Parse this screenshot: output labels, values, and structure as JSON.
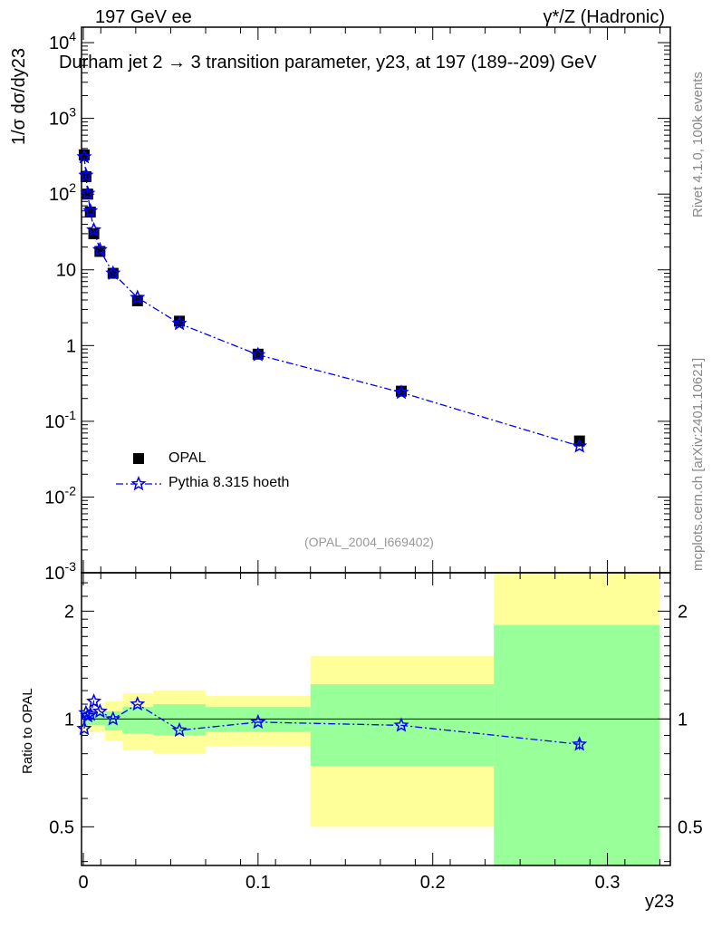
{
  "header": {
    "left": "197 GeV ee",
    "right": "γ*/Z (Hadronic)"
  },
  "side_labels": {
    "rivet": "Rivet 4.1.0,  100k events",
    "mcplots": "mcplots.cern.ch [arXiv:2401.10621]"
  },
  "chart_data": [
    {
      "type": "scatter",
      "title": "Durham jet 2 → 3 transition parameter, y23, at 197 (189--209) GeV",
      "ylabel": "1/σ  dσ/dy23",
      "yscale": "log",
      "ylim": [
        0.001,
        16000
      ],
      "xlim": [
        0,
        0.336
      ],
      "yticks": [
        {
          "v": 0.001,
          "label": "10^-3"
        },
        {
          "v": 0.01,
          "label": "10^-2"
        },
        {
          "v": 0.1,
          "label": "10^-1"
        },
        {
          "v": 1,
          "label": "1"
        },
        {
          "v": 10,
          "label": "10"
        },
        {
          "v": 100,
          "label": "10^2"
        },
        {
          "v": 1000,
          "label": "10^3"
        },
        {
          "v": 10000,
          "label": "10^4"
        }
      ],
      "watermark": "(OPAL_2004_I669402)",
      "legend_position": "bottom-left",
      "series": [
        {
          "name": "OPAL",
          "marker": "square",
          "color": "#000000",
          "x": [
            0.0005,
            0.0015,
            0.0025,
            0.004,
            0.006,
            0.0095,
            0.017,
            0.031,
            0.055,
            0.1,
            0.182,
            0.284
          ],
          "y": [
            330,
            170,
            100,
            58,
            30,
            17.5,
            9.0,
            3.9,
            2.1,
            0.77,
            0.25,
            0.055
          ]
        },
        {
          "name": "Pythia 8.315 hoeth",
          "marker": "star",
          "color": "#0000ff",
          "x": [
            0.0005,
            0.0015,
            0.0025,
            0.004,
            0.006,
            0.0095,
            0.017,
            0.031,
            0.055,
            0.1,
            0.182,
            0.284
          ],
          "y": [
            310,
            177,
            102,
            60,
            33.6,
            18.4,
            9.0,
            4.3,
            1.95,
            0.755,
            0.24,
            0.047
          ]
        }
      ]
    },
    {
      "type": "line",
      "ylabel": "Ratio to OPAL",
      "xlabel": "y23",
      "yscale": "log",
      "ylim": [
        0.39,
        2.56
      ],
      "xlim": [
        0,
        0.336
      ],
      "yticks": [
        {
          "v": 0.5,
          "label": "0.5"
        },
        {
          "v": 1,
          "label": "1"
        },
        {
          "v": 2,
          "label": "2"
        }
      ],
      "xticks": [
        {
          "v": 0,
          "label": "0"
        },
        {
          "v": 0.1,
          "label": "0.1"
        },
        {
          "v": 0.2,
          "label": "0.2"
        },
        {
          "v": 0.3,
          "label": "0.3"
        }
      ],
      "bands": [
        {
          "x0": 0,
          "x1": 0.0125,
          "green": [
            0.96,
            1.04
          ],
          "yellow": [
            0.92,
            1.08
          ]
        },
        {
          "x0": 0.0125,
          "x1": 0.0225,
          "green": [
            0.93,
            1.05
          ],
          "yellow": [
            0.87,
            1.12
          ]
        },
        {
          "x0": 0.0225,
          "x1": 0.04,
          "green": [
            0.91,
            1.08
          ],
          "yellow": [
            0.82,
            1.18
          ]
        },
        {
          "x0": 0.04,
          "x1": 0.07,
          "green": [
            0.9,
            1.1
          ],
          "yellow": [
            0.8,
            1.2
          ]
        },
        {
          "x0": 0.07,
          "x1": 0.13,
          "green": [
            0.92,
            1.08
          ],
          "yellow": [
            0.84,
            1.16
          ]
        },
        {
          "x0": 0.13,
          "x1": 0.235,
          "green": [
            0.74,
            1.25
          ],
          "yellow": [
            0.5,
            1.5
          ]
        },
        {
          "x0": 0.235,
          "x1": 0.33,
          "green": [
            0.3,
            1.83
          ],
          "yellow": [
            0.3,
            3.0
          ]
        }
      ],
      "series": [
        {
          "name": "Pythia 8.315 hoeth",
          "x": [
            0.0005,
            0.0015,
            0.0025,
            0.004,
            0.006,
            0.0095,
            0.017,
            0.031,
            0.055,
            0.1,
            0.182,
            0.284
          ],
          "y": [
            0.94,
            1.04,
            1.02,
            1.03,
            1.12,
            1.05,
            1.0,
            1.1,
            0.93,
            0.98,
            0.96,
            0.85
          ]
        }
      ]
    }
  ]
}
